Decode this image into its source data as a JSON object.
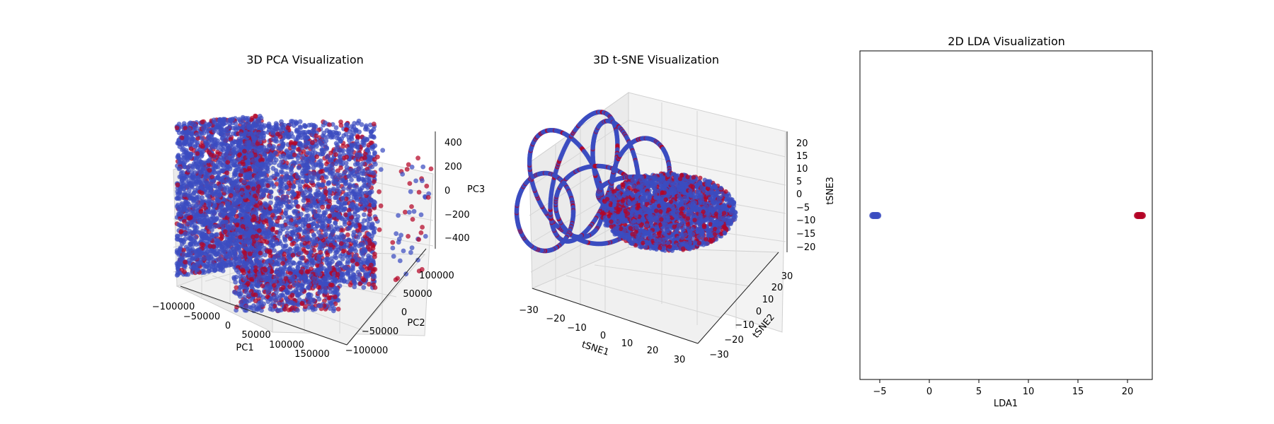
{
  "colors": {
    "class_a": "#3b4cc0",
    "class_b": "#b40426",
    "pane": "#f2f2f2",
    "grid": "#d6d6d6"
  },
  "chart_data": [
    {
      "type": "scatter",
      "projection": "3d",
      "title": "3D PCA Visualization",
      "xlabel": "PC1",
      "ylabel": "PC2",
      "zlabel": "PC3",
      "xticks": [
        "−100000",
        "−50000",
        "0",
        "50000",
        "100000",
        "150000"
      ],
      "yticks": [
        "−100000",
        "−50000",
        "0",
        "50000",
        "100000"
      ],
      "zticks": [
        "−400",
        "−200",
        "0",
        "200",
        "400"
      ],
      "xlim": [
        -100000,
        175000
      ],
      "ylim": [
        -120000,
        120000
      ],
      "zlim": [
        -500,
        450
      ],
      "series": [
        {
          "color": "#3b4cc0",
          "description_of_cloud": "dense slab x≈−100000..−50000 plus spread cloud"
        },
        {
          "color": "#b40426",
          "description_of_cloud": "interleaved points across same region, sparse outliers at high PC2"
        }
      ]
    },
    {
      "type": "scatter",
      "projection": "3d",
      "title": "3D t-SNE Visualization",
      "xlabel": "tSNE1",
      "ylabel": "tSNE2",
      "zlabel": "tSNE3",
      "xticks": [
        "−30",
        "−20",
        "−10",
        "0",
        "10",
        "20",
        "30"
      ],
      "yticks": [
        "−30",
        "−20",
        "−10",
        "0",
        "10",
        "20",
        "30"
      ],
      "zticks": [
        "−20",
        "−15",
        "−10",
        "−5",
        "0",
        "5",
        "10",
        "15",
        "20"
      ],
      "xlim": [
        -32,
        32
      ],
      "ylim": [
        -35,
        35
      ],
      "zlim": [
        -21,
        22
      ],
      "series": [
        {
          "color": "#3b4cc0"
        },
        {
          "color": "#b40426"
        }
      ]
    },
    {
      "type": "scatter",
      "title": "2D LDA Visualization",
      "xlabel": "LDA1",
      "xticks": [
        "−5",
        "0",
        "5",
        "10",
        "15",
        "20"
      ],
      "xlim": [
        -7,
        22.5
      ],
      "ylim": [
        -1,
        1
      ],
      "series": [
        {
          "color": "#3b4cc0",
          "x": [
            -5.7,
            -5.6,
            -5.5,
            -5.4,
            -5.3,
            -5.2
          ],
          "y": [
            0,
            0,
            0,
            0,
            0,
            0
          ]
        },
        {
          "color": "#b40426",
          "x": [
            21.0,
            21.1,
            21.2,
            21.3,
            21.4,
            21.5
          ],
          "y": [
            0,
            0,
            0,
            0,
            0,
            0
          ]
        }
      ]
    }
  ]
}
